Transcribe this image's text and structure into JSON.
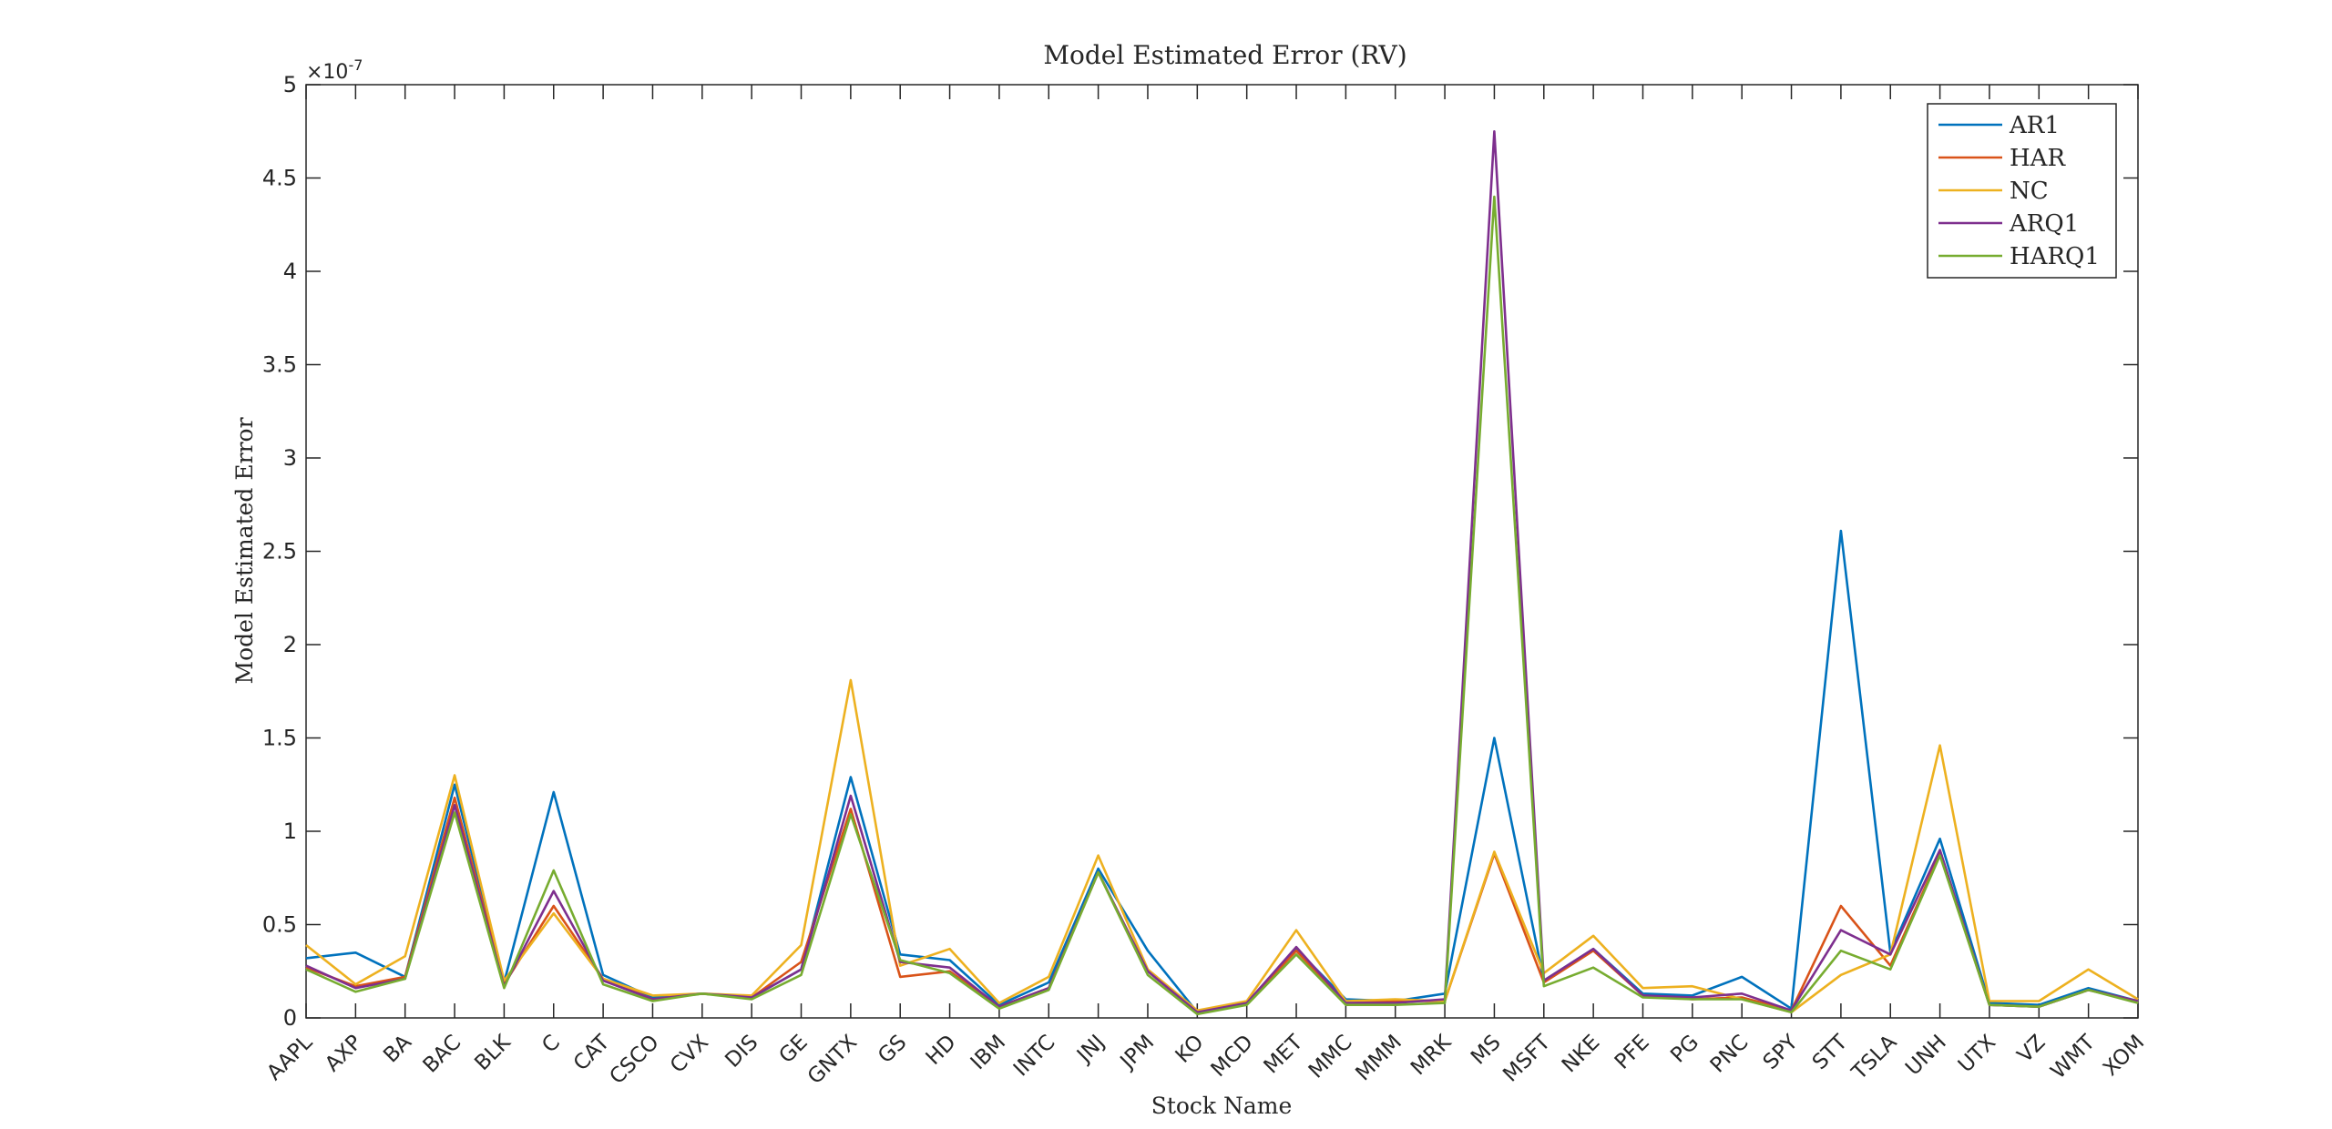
{
  "chart_data": {
    "type": "line",
    "title": "Model Estimated Error (RV)",
    "xlabel": "Stock Name",
    "ylabel": "Model Estimated Error",
    "y_exponent_label": "×10",
    "y_exponent_power": "-7",
    "ylim": [
      0,
      5
    ],
    "y_ticks": [
      "0",
      "0.5",
      "1",
      "1.5",
      "2",
      "2.5",
      "3",
      "3.5",
      "4",
      "4.5",
      "5"
    ],
    "y_tick_values": [
      0,
      0.5,
      1,
      1.5,
      2,
      2.5,
      3,
      3.5,
      4,
      4.5,
      5
    ],
    "grid": false,
    "legend_position": "top-right",
    "categories": [
      "AAPL",
      "AXP",
      "BA",
      "BAC",
      "BLK",
      "C",
      "CAT",
      "CSCO",
      "CVX",
      "DIS",
      "GE",
      "GNTX",
      "GS",
      "HD",
      "IBM",
      "INTC",
      "JNJ",
      "JPM",
      "KO",
      "MCD",
      "MET",
      "MMC",
      "MMM",
      "MRK",
      "MS",
      "MSFT",
      "NKE",
      "PFE",
      "PG",
      "PNC",
      "SPY",
      "STT",
      "TSLA",
      "UNH",
      "UTX",
      "VZ",
      "WMT",
      "XOM"
    ],
    "series": [
      {
        "name": "AR1",
        "color": "#0072BD",
        "values": [
          0.32,
          0.35,
          0.22,
          1.25,
          0.19,
          1.21,
          0.23,
          0.11,
          0.13,
          0.11,
          0.26,
          1.29,
          0.34,
          0.31,
          0.07,
          0.19,
          0.8,
          0.36,
          0.03,
          0.08,
          0.37,
          0.1,
          0.09,
          0.13,
          1.5,
          0.2,
          0.37,
          0.13,
          0.12,
          0.22,
          0.05,
          2.61,
          0.35,
          0.96,
          0.08,
          0.07,
          0.16,
          0.09
        ]
      },
      {
        "name": "HAR",
        "color": "#D95319",
        "values": [
          0.27,
          0.17,
          0.22,
          1.18,
          0.18,
          0.6,
          0.21,
          0.1,
          0.13,
          0.11,
          0.3,
          1.12,
          0.22,
          0.25,
          0.06,
          0.16,
          0.78,
          0.25,
          0.03,
          0.08,
          0.36,
          0.08,
          0.09,
          0.09,
          0.88,
          0.19,
          0.36,
          0.12,
          0.1,
          0.11,
          0.04,
          0.6,
          0.28,
          0.88,
          0.07,
          0.06,
          0.15,
          0.09
        ]
      },
      {
        "name": "NC",
        "color": "#EDB120",
        "values": [
          0.39,
          0.18,
          0.33,
          1.3,
          0.2,
          0.56,
          0.21,
          0.12,
          0.13,
          0.12,
          0.39,
          1.81,
          0.28,
          0.37,
          0.08,
          0.22,
          0.87,
          0.26,
          0.04,
          0.09,
          0.47,
          0.09,
          0.1,
          0.09,
          0.89,
          0.24,
          0.44,
          0.16,
          0.17,
          0.1,
          0.03,
          0.23,
          0.34,
          1.46,
          0.09,
          0.09,
          0.26,
          0.1
        ]
      },
      {
        "name": "ARQ1",
        "color": "#7E2F8E",
        "values": [
          0.28,
          0.16,
          0.21,
          1.14,
          0.17,
          0.68,
          0.2,
          0.1,
          0.13,
          0.11,
          0.26,
          1.19,
          0.3,
          0.27,
          0.06,
          0.16,
          0.78,
          0.25,
          0.03,
          0.08,
          0.38,
          0.08,
          0.08,
          0.1,
          4.75,
          0.2,
          0.37,
          0.12,
          0.11,
          0.13,
          0.04,
          0.47,
          0.34,
          0.9,
          0.07,
          0.06,
          0.15,
          0.09
        ]
      },
      {
        "name": "HARQ1",
        "color": "#77AC30",
        "values": [
          0.26,
          0.14,
          0.21,
          1.1,
          0.16,
          0.79,
          0.18,
          0.09,
          0.13,
          0.1,
          0.23,
          1.09,
          0.31,
          0.24,
          0.05,
          0.15,
          0.78,
          0.23,
          0.02,
          0.07,
          0.34,
          0.07,
          0.07,
          0.08,
          4.4,
          0.17,
          0.27,
          0.11,
          0.1,
          0.1,
          0.03,
          0.36,
          0.26,
          0.87,
          0.07,
          0.06,
          0.15,
          0.08
        ]
      }
    ]
  }
}
